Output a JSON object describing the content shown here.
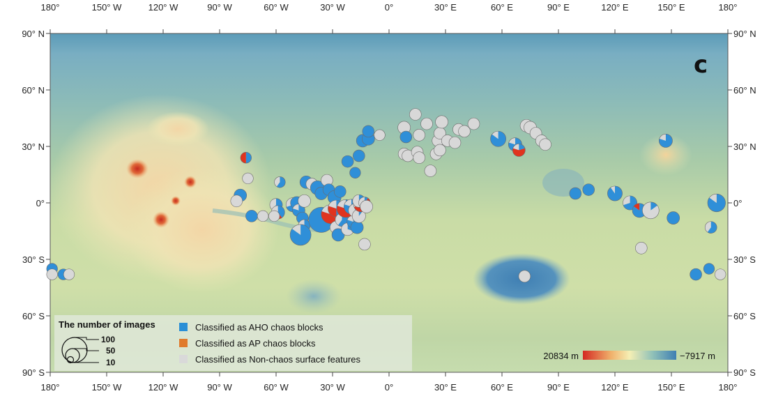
{
  "map": {
    "panel_label": "c",
    "lon_ticks": [
      "180°",
      "150° W",
      "120° W",
      "90° W",
      "60° W",
      "30° W",
      "0°",
      "30° E",
      "60° E",
      "90° E",
      "120° E",
      "150° E",
      "180°"
    ],
    "lat_ticks": [
      "90° N",
      "60° N",
      "30° N",
      "0°",
      "30° S",
      "60° S",
      "90° S"
    ],
    "colors": {
      "aho": "#2f8fd8",
      "ap": "#e0341f",
      "non_chaos": "#d8d8d8",
      "high": "#d42a22",
      "mid": "#f5efb4",
      "low": "#3f7fb3"
    }
  },
  "legend": {
    "title": "The number of images",
    "size_values": [
      "100",
      "50",
      "10"
    ],
    "categories": [
      {
        "label": "Classified as AHO chaos blocks",
        "color": "#2a8fd6"
      },
      {
        "label": "Classified as AP chaos blocks",
        "color": "#e07a2c"
      },
      {
        "label": "Classified as Non-chaos surface features",
        "color": "#d9d9d9"
      }
    ]
  },
  "colorbar": {
    "high_label": "20834 m",
    "low_label": "−7917 m"
  },
  "chart_data": {
    "type": "scatter",
    "title": "",
    "xlabel": "",
    "ylabel": "",
    "x_unit": "longitude (°E)",
    "y_unit": "latitude (°N)",
    "xlim": [
      -180,
      180
    ],
    "ylim": [
      -90,
      90
    ],
    "size_variable": "The number of images",
    "series": [
      {
        "name": "Classified as AHO chaos blocks",
        "color": "#2f8fd8"
      },
      {
        "name": "Classified as AP chaos blocks",
        "color": "#e0341f"
      },
      {
        "name": "Classified as Non-chaos surface features",
        "color": "#d8d8d8"
      }
    ],
    "points": [
      {
        "lon": -76,
        "lat": 24,
        "n": 6,
        "aho": 0.5,
        "ap": 0.5,
        "non": 0
      },
      {
        "lon": -75,
        "lat": 13,
        "n": 6,
        "aho": 0,
        "ap": 0,
        "non": 1
      },
      {
        "lon": -79,
        "lat": 4,
        "n": 8,
        "aho": 1,
        "ap": 0,
        "non": 0
      },
      {
        "lon": -81,
        "lat": 1,
        "n": 7,
        "aho": 0,
        "ap": 0,
        "non": 1
      },
      {
        "lon": -73,
        "lat": -7,
        "n": 7,
        "aho": 1,
        "ap": 0,
        "non": 0
      },
      {
        "lon": -67,
        "lat": -7,
        "n": 6,
        "aho": 0,
        "ap": 0,
        "non": 1
      },
      {
        "lon": -58,
        "lat": 11,
        "n": 6,
        "aho": 0.6,
        "ap": 0,
        "non": 0.4
      },
      {
        "lon": -60,
        "lat": -1,
        "n": 8,
        "aho": 0.6,
        "ap": 0,
        "non": 0.4
      },
      {
        "lon": -59,
        "lat": -5,
        "n": 9,
        "aho": 0.4,
        "ap": 0.3,
        "non": 0.3
      },
      {
        "lon": -61,
        "lat": -7,
        "n": 6,
        "aho": 0,
        "ap": 0,
        "non": 1
      },
      {
        "lon": -51,
        "lat": -1,
        "n": 10,
        "aho": 0.7,
        "ap": 0,
        "non": 0.3
      },
      {
        "lon": -49,
        "lat": 0,
        "n": 8,
        "aho": 1,
        "ap": 0,
        "non": 0
      },
      {
        "lon": -48,
        "lat": -4,
        "n": 8,
        "aho": 0.8,
        "ap": 0,
        "non": 0.2
      },
      {
        "lon": -46,
        "lat": -8,
        "n": 7,
        "aho": 1,
        "ap": 0,
        "non": 0
      },
      {
        "lon": -45,
        "lat": -12,
        "n": 7,
        "aho": 0.7,
        "ap": 0,
        "non": 0.3
      },
      {
        "lon": -47,
        "lat": -17,
        "n": 22,
        "aho": 0.85,
        "ap": 0,
        "non": 0.15
      },
      {
        "lon": -45,
        "lat": 1,
        "n": 8,
        "aho": 0,
        "ap": 0,
        "non": 1
      },
      {
        "lon": -44,
        "lat": 11,
        "n": 8,
        "aho": 1,
        "ap": 0,
        "non": 0
      },
      {
        "lon": -41,
        "lat": 10,
        "n": 7,
        "aho": 0,
        "ap": 0,
        "non": 1
      },
      {
        "lon": -38,
        "lat": 8,
        "n": 10,
        "aho": 1,
        "ap": 0,
        "non": 0
      },
      {
        "lon": -36,
        "lat": -9,
        "n": 32,
        "aho": 1,
        "ap": 0,
        "non": 0
      },
      {
        "lon": -36,
        "lat": 5,
        "n": 8,
        "aho": 1,
        "ap": 0,
        "non": 0
      },
      {
        "lon": -33,
        "lat": 12,
        "n": 7,
        "aho": 0,
        "ap": 0,
        "non": 1
      },
      {
        "lon": -32,
        "lat": 7,
        "n": 7,
        "aho": 1,
        "ap": 0,
        "non": 0
      },
      {
        "lon": -31,
        "lat": -6,
        "n": 18,
        "aho": 0.35,
        "ap": 0.45,
        "non": 0.2
      },
      {
        "lon": -29,
        "lat": 3,
        "n": 9,
        "aho": 1,
        "ap": 0,
        "non": 0
      },
      {
        "lon": -28,
        "lat": -3,
        "n": 14,
        "aho": 0.5,
        "ap": 0.3,
        "non": 0.2
      },
      {
        "lon": -28,
        "lat": -13,
        "n": 8,
        "aho": 0,
        "ap": 0,
        "non": 1
      },
      {
        "lon": -27,
        "lat": -17,
        "n": 8,
        "aho": 1,
        "ap": 0,
        "non": 0
      },
      {
        "lon": -26,
        "lat": 6,
        "n": 7,
        "aho": 1,
        "ap": 0,
        "non": 0
      },
      {
        "lon": -25,
        "lat": -9,
        "n": 9,
        "aho": 0.6,
        "ap": 0,
        "non": 0.4
      },
      {
        "lon": -23,
        "lat": -3,
        "n": 16,
        "aho": 0.2,
        "ap": 0.6,
        "non": 0.2
      },
      {
        "lon": -22,
        "lat": -14,
        "n": 8,
        "aho": 0.3,
        "ap": 0,
        "non": 0.7
      },
      {
        "lon": -20,
        "lat": -2,
        "n": 11,
        "aho": 0.8,
        "ap": 0,
        "non": 0.2
      },
      {
        "lon": -19,
        "lat": -10,
        "n": 8,
        "aho": 0.8,
        "ap": 0,
        "non": 0.2
      },
      {
        "lon": -18,
        "lat": -4,
        "n": 9,
        "aho": 0.5,
        "ap": 0,
        "non": 0.5
      },
      {
        "lon": -17,
        "lat": -13,
        "n": 8,
        "aho": 1,
        "ap": 0,
        "non": 0
      },
      {
        "lon": -16,
        "lat": -7,
        "n": 9,
        "aho": 0.1,
        "ap": 0,
        "non": 0.9
      },
      {
        "lon": -15,
        "lat": -1,
        "n": 10,
        "aho": 0.4,
        "ap": 0.3,
        "non": 0.3
      },
      {
        "lon": -16,
        "lat": 1,
        "n": 8,
        "aho": 0.3,
        "ap": 0.1,
        "non": 0.6
      },
      {
        "lon": -13,
        "lat": 0,
        "n": 7,
        "aho": 0.1,
        "ap": 0.1,
        "non": 0.8
      },
      {
        "lon": -13,
        "lat": -22,
        "n": 7,
        "aho": 0,
        "ap": 0,
        "non": 1
      },
      {
        "lon": -12,
        "lat": -2,
        "n": 8,
        "aho": 0,
        "ap": 0,
        "non": 1
      },
      {
        "lon": -18,
        "lat": 16,
        "n": 6,
        "aho": 1,
        "ap": 0,
        "non": 0
      },
      {
        "lon": -22,
        "lat": 22,
        "n": 7,
        "aho": 1,
        "ap": 0,
        "non": 0
      },
      {
        "lon": -16,
        "lat": 25,
        "n": 7,
        "aho": 1,
        "ap": 0,
        "non": 0
      },
      {
        "lon": -14,
        "lat": 33,
        "n": 8,
        "aho": 1,
        "ap": 0,
        "non": 0
      },
      {
        "lon": -11,
        "lat": 34,
        "n": 8,
        "aho": 1,
        "ap": 0,
        "non": 0
      },
      {
        "lon": -11,
        "lat": 38,
        "n": 7,
        "aho": 1,
        "ap": 0,
        "non": 0
      },
      {
        "lon": -5,
        "lat": 36,
        "n": 6,
        "aho": 0,
        "ap": 0,
        "non": 1
      },
      {
        "lon": 8,
        "lat": 40,
        "n": 8,
        "aho": 0,
        "ap": 0,
        "non": 1
      },
      {
        "lon": 9,
        "lat": 35,
        "n": 7,
        "aho": 1,
        "ap": 0,
        "non": 0
      },
      {
        "lon": 14,
        "lat": 47,
        "n": 7,
        "aho": 0,
        "ap": 0,
        "non": 1
      },
      {
        "lon": 16,
        "lat": 36,
        "n": 7,
        "aho": 0,
        "ap": 0,
        "non": 1
      },
      {
        "lon": 20,
        "lat": 42,
        "n": 7,
        "aho": 0,
        "ap": 0,
        "non": 1
      },
      {
        "lon": 26,
        "lat": 33,
        "n": 7,
        "aho": 0,
        "ap": 0,
        "non": 1
      },
      {
        "lon": 27,
        "lat": 37,
        "n": 7,
        "aho": 0,
        "ap": 0,
        "non": 1
      },
      {
        "lon": 28,
        "lat": 43,
        "n": 8,
        "aho": 0,
        "ap": 0,
        "non": 1
      },
      {
        "lon": 31,
        "lat": 33,
        "n": 7,
        "aho": 0,
        "ap": 0,
        "non": 1
      },
      {
        "lon": 35,
        "lat": 32,
        "n": 7,
        "aho": 0,
        "ap": 0,
        "non": 1
      },
      {
        "lon": 37,
        "lat": 39,
        "n": 7,
        "aho": 0,
        "ap": 0,
        "non": 1
      },
      {
        "lon": 40,
        "lat": 38,
        "n": 7,
        "aho": 0,
        "ap": 0,
        "non": 1
      },
      {
        "lon": 45,
        "lat": 42,
        "n": 7,
        "aho": 0,
        "ap": 0,
        "non": 1
      },
      {
        "lon": 8,
        "lat": 26,
        "n": 7,
        "aho": 0,
        "ap": 0,
        "non": 1
      },
      {
        "lon": 10,
        "lat": 25,
        "n": 7,
        "aho": 0,
        "ap": 0,
        "non": 1
      },
      {
        "lon": 15,
        "lat": 27,
        "n": 7,
        "aho": 0,
        "ap": 0,
        "non": 1
      },
      {
        "lon": 16,
        "lat": 24,
        "n": 7,
        "aho": 0,
        "ap": 0,
        "non": 1
      },
      {
        "lon": 22,
        "lat": 17,
        "n": 7,
        "aho": 0,
        "ap": 0,
        "non": 1
      },
      {
        "lon": 25,
        "lat": 26,
        "n": 7,
        "aho": 0,
        "ap": 0,
        "non": 1
      },
      {
        "lon": 27,
        "lat": 28,
        "n": 7,
        "aho": 0,
        "ap": 0,
        "non": 1
      },
      {
        "lon": 58,
        "lat": 34,
        "n": 12,
        "aho": 0.85,
        "ap": 0,
        "non": 0.15
      },
      {
        "lon": 67,
        "lat": 31,
        "n": 9,
        "aho": 0.8,
        "ap": 0,
        "non": 0.2
      },
      {
        "lon": 69,
        "lat": 28,
        "n": 8,
        "aho": 0.2,
        "ap": 0.6,
        "non": 0.2
      },
      {
        "lon": 73,
        "lat": 41,
        "n": 8,
        "aho": 0,
        "ap": 0,
        "non": 1
      },
      {
        "lon": 75,
        "lat": 40,
        "n": 8,
        "aho": 0,
        "ap": 0,
        "non": 1
      },
      {
        "lon": 78,
        "lat": 37,
        "n": 7,
        "aho": 0,
        "ap": 0,
        "non": 1
      },
      {
        "lon": 81,
        "lat": 33,
        "n": 7,
        "aho": 0,
        "ap": 0,
        "non": 1
      },
      {
        "lon": 83,
        "lat": 31,
        "n": 7,
        "aho": 0,
        "ap": 0,
        "non": 1
      },
      {
        "lon": 99,
        "lat": 5,
        "n": 7,
        "aho": 1,
        "ap": 0,
        "non": 0
      },
      {
        "lon": 106,
        "lat": 7,
        "n": 7,
        "aho": 1,
        "ap": 0,
        "non": 0
      },
      {
        "lon": 120,
        "lat": 5,
        "n": 11,
        "aho": 0.9,
        "ap": 0,
        "non": 0.1
      },
      {
        "lon": 128,
        "lat": 0,
        "n": 10,
        "aho": 0.7,
        "ap": 0,
        "non": 0.3
      },
      {
        "lon": 133,
        "lat": -4,
        "n": 10,
        "aho": 0.85,
        "ap": 0.15,
        "non": 0
      },
      {
        "lon": 139,
        "lat": -4,
        "n": 14,
        "aho": 0.15,
        "ap": 0,
        "non": 0.85
      },
      {
        "lon": 147,
        "lat": 33,
        "n": 9,
        "aho": 0.8,
        "ap": 0,
        "non": 0.2
      },
      {
        "lon": 151,
        "lat": -8,
        "n": 8,
        "aho": 1,
        "ap": 0,
        "non": 0
      },
      {
        "lon": 174,
        "lat": 0,
        "n": 16,
        "aho": 0.85,
        "ap": 0,
        "non": 0.15
      },
      {
        "lon": 171,
        "lat": -13,
        "n": 7,
        "aho": 0.6,
        "ap": 0,
        "non": 0.4
      },
      {
        "lon": 170,
        "lat": -35,
        "n": 6,
        "aho": 1,
        "ap": 0,
        "non": 0
      },
      {
        "lon": 163,
        "lat": -38,
        "n": 7,
        "aho": 1,
        "ap": 0,
        "non": 0
      },
      {
        "lon": 176,
        "lat": -38,
        "n": 6,
        "aho": 0,
        "ap": 0,
        "non": 1
      },
      {
        "lon": 134,
        "lat": -24,
        "n": 7,
        "aho": 0,
        "ap": 0,
        "non": 1
      },
      {
        "lon": 72,
        "lat": -39,
        "n": 7,
        "aho": 0,
        "ap": 0,
        "non": 1
      },
      {
        "lon": -179,
        "lat": -35,
        "n": 6,
        "aho": 1,
        "ap": 0,
        "non": 0
      },
      {
        "lon": -179,
        "lat": -38,
        "n": 6,
        "aho": 0,
        "ap": 0,
        "non": 1
      },
      {
        "lon": -173,
        "lat": -38,
        "n": 6,
        "aho": 1,
        "ap": 0,
        "non": 0
      },
      {
        "lon": -170,
        "lat": -38,
        "n": 6,
        "aho": 0,
        "ap": 0,
        "non": 1
      }
    ]
  }
}
